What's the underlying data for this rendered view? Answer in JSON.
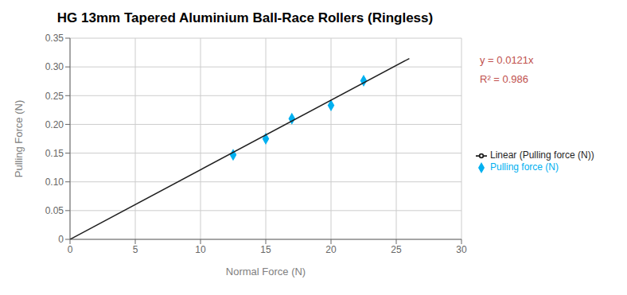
{
  "chart_data": {
    "type": "scatter",
    "title": "HG 13mm Tapered Aluminium Ball-Race Rollers (Ringless)",
    "x_label": "Normal Force (N)",
    "y_label": "Pulling Force (N)",
    "xlim": [
      0,
      30
    ],
    "xticks": [
      0,
      5,
      10,
      15,
      20,
      25,
      30
    ],
    "ylim": [
      0,
      0.35
    ],
    "yticks": [
      0,
      0.05,
      {
        "value": 0.1,
        "label": "0.10"
      },
      0.15,
      {
        "value": 0.2,
        "label": "0.20"
      },
      0.25,
      {
        "value": 0.3,
        "label": "0.30"
      },
      0.35
    ],
    "grid": true,
    "legend": "right",
    "series": [
      {
        "name": "Pulling force (N)",
        "type": "scatter",
        "marker": "diamond",
        "color": "#00B0F0",
        "x": [
          12.5,
          15.0,
          17.0,
          20.0,
          22.5
        ],
        "values": [
          0.147,
          0.175,
          0.21,
          0.233,
          0.276
        ]
      },
      {
        "name": "Linear (Pulling force (N))",
        "type": "line",
        "color": "#1F1F1F",
        "x": [
          0,
          26
        ],
        "values": [
          0,
          0.3146
        ]
      }
    ],
    "annotations": [
      {
        "text": "y = 0.0121x",
        "color": "#C0504D"
      },
      {
        "text": "R² = 0.986",
        "color": "#C0504D"
      }
    ]
  }
}
